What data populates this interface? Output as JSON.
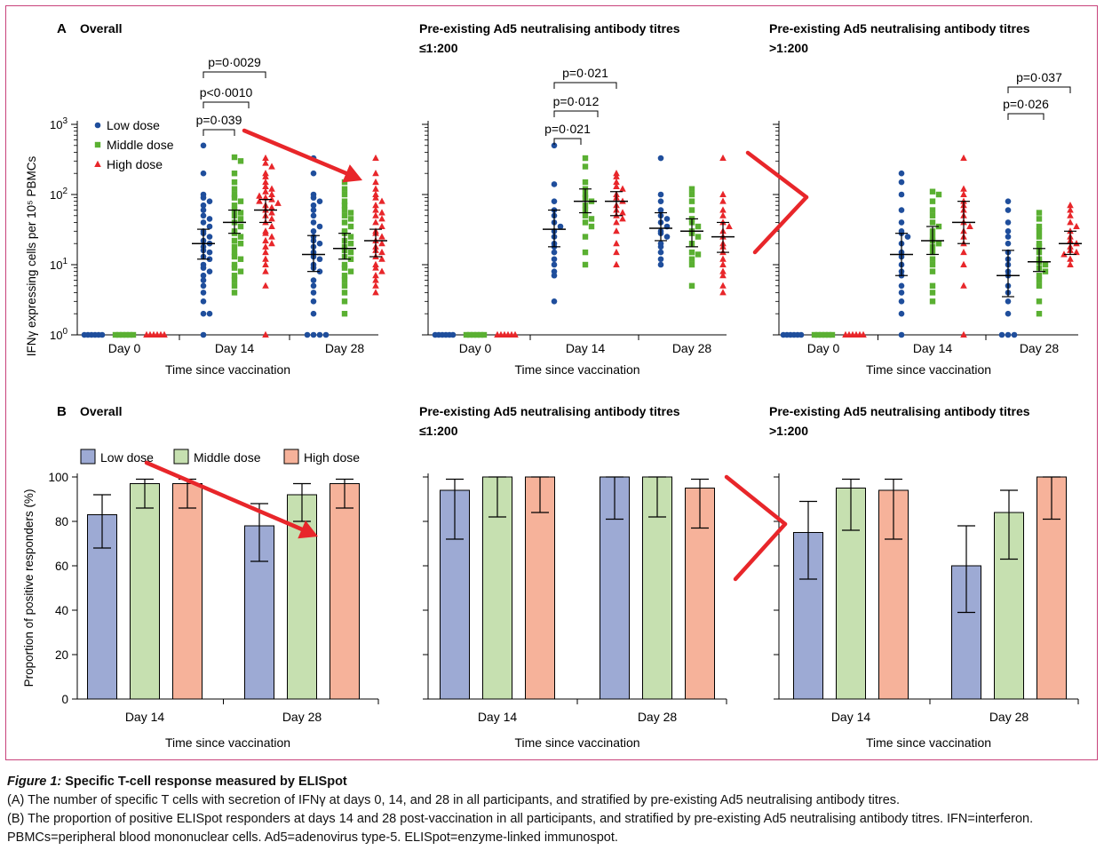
{
  "chart_data": [
    {
      "type": "scatter",
      "panel_letter": "A",
      "title": "Overall",
      "ylabel": "IFNγ expressing cells per 10⁵ PBMCs",
      "xlabel": "Time since vaccination",
      "categories": [
        "Day 0",
        "Day 14",
        "Day 28"
      ],
      "yscale": "log",
      "ylim": [
        1,
        1000
      ],
      "legend": {
        "placement": "top-left",
        "entries": [
          "Low dose",
          "Middle dose",
          "High dose"
        ]
      },
      "series": [
        {
          "name": "Low dose",
          "color": "#1f4e9c",
          "marker": "circle",
          "values": {
            "Day 0": [
              1,
              1,
              1,
              1,
              1,
              1
            ],
            "Day 14": [
              500,
              200,
              100,
              90,
              80,
              70,
              60,
              50,
              45,
              40,
              35,
              30,
              28,
              25,
              22,
              20,
              18,
              16,
              15,
              13,
              12,
              10,
              9,
              8,
              7,
              6,
              5,
              4,
              3,
              2,
              2,
              1
            ],
            "Day 28": [
              330,
              200,
              100,
              90,
              80,
              70,
              60,
              50,
              40,
              35,
              30,
              25,
              22,
              20,
              18,
              15,
              13,
              12,
              10,
              9,
              8,
              6,
              5,
              4,
              3,
              2,
              1,
              1,
              1,
              1
            ]
          },
          "median": {
            "Day 14": 20,
            "Day 28": 14
          },
          "iqr": {
            "Day 14": [
              12,
              32
            ],
            "Day 28": [
              8,
              26
            ]
          }
        },
        {
          "name": "Middle dose",
          "color": "#5ab032",
          "marker": "square",
          "values": {
            "Day 0": [
              1,
              1,
              1,
              1,
              1,
              1
            ],
            "Day 14": [
              340,
              300,
              200,
              150,
              120,
              100,
              90,
              80,
              70,
              60,
              55,
              50,
              45,
              40,
              35,
              30,
              28,
              25,
              22,
              20,
              18,
              15,
              13,
              12,
              10,
              9,
              8,
              7,
              6,
              5,
              4
            ],
            "Day 28": [
              150,
              120,
              100,
              80,
              70,
              60,
              55,
              50,
              45,
              40,
              35,
              30,
              28,
              25,
              22,
              20,
              18,
              16,
              15,
              13,
              12,
              10,
              9,
              8,
              7,
              6,
              5,
              4,
              3,
              2
            ]
          },
          "median": {
            "Day 14": 40,
            "Day 28": 17
          },
          "iqr": {
            "Day 14": [
              28,
              60
            ],
            "Day 28": [
              12,
              28
            ]
          }
        },
        {
          "name": "High dose",
          "color": "#e8262a",
          "marker": "triangle",
          "values": {
            "Day 0": [
              1,
              1,
              1,
              1,
              1,
              1
            ],
            "Day 14": [
              330,
              280,
              250,
              200,
              180,
              150,
              130,
              120,
              110,
              100,
              95,
              90,
              85,
              80,
              75,
              70,
              65,
              60,
              55,
              50,
              45,
              40,
              35,
              30,
              28,
              25,
              22,
              20,
              18,
              15,
              12,
              10,
              8,
              5,
              1
            ],
            "Day 28": [
              330,
              200,
              150,
              120,
              100,
              90,
              80,
              70,
              60,
              55,
              50,
              45,
              40,
              35,
              30,
              28,
              25,
              22,
              20,
              18,
              16,
              15,
              13,
              12,
              10,
              9,
              8,
              7,
              6,
              5,
              4
            ]
          },
          "median": {
            "Day 14": 60,
            "Day 28": 22
          },
          "iqr": {
            "Day 14": [
              40,
              85
            ],
            "Day 28": [
              13,
              32
            ]
          }
        }
      ],
      "annotations": [
        "p=0·0029",
        "p<0·0010",
        "p=0·039"
      ]
    },
    {
      "type": "scatter",
      "panel_letter": "",
      "title": "Pre-existing Ad5 neutralising antibody titres",
      "title_line2": "≤1:200",
      "xlabel": "Time since vaccination",
      "categories": [
        "Day 0",
        "Day 14",
        "Day 28"
      ],
      "yscale": "log",
      "ylim": [
        1,
        1000
      ],
      "series": [
        {
          "name": "Low dose",
          "color": "#1f4e9c",
          "marker": "circle",
          "values": {
            "Day 0": [
              1,
              1,
              1,
              1,
              1,
              1
            ],
            "Day 14": [
              500,
              140,
              80,
              60,
              50,
              40,
              35,
              30,
              25,
              20,
              18,
              15,
              12,
              10,
              8,
              7,
              3
            ],
            "Day 28": [
              330,
              100,
              80,
              60,
              50,
              45,
              40,
              35,
              30,
              28,
              25,
              20,
              18,
              15,
              12,
              10
            ]
          },
          "median": {
            "Day 14": 32,
            "Day 28": 33
          },
          "iqr": {
            "Day 14": [
              18,
              60
            ],
            "Day 28": [
              22,
              55
            ]
          }
        },
        {
          "name": "Middle dose",
          "color": "#5ab032",
          "marker": "square",
          "values": {
            "Day 0": [
              1,
              1,
              1,
              1,
              1,
              1
            ],
            "Day 14": [
              330,
              250,
              150,
              120,
              100,
              90,
              80,
              70,
              60,
              50,
              45,
              40,
              35,
              25,
              15,
              10
            ],
            "Day 28": [
              120,
              100,
              80,
              60,
              45,
              40,
              35,
              30,
              28,
              25,
              20,
              15,
              14,
              12,
              10,
              5
            ]
          },
          "median": {
            "Day 14": 80,
            "Day 28": 30
          },
          "iqr": {
            "Day 14": [
              55,
              120
            ],
            "Day 28": [
              18,
              45
            ]
          }
        },
        {
          "name": "High dose",
          "color": "#e8262a",
          "marker": "triangle",
          "values": {
            "Day 0": [
              1,
              1,
              1,
              1,
              1,
              1
            ],
            "Day 14": [
              200,
              180,
              150,
              130,
              120,
              100,
              90,
              80,
              70,
              60,
              55,
              50,
              45,
              40,
              30,
              20,
              15,
              10
            ],
            "Day 28": [
              330,
              100,
              80,
              60,
              50,
              40,
              35,
              30,
              25,
              20,
              18,
              15,
              12,
              10,
              8,
              7,
              5,
              4
            ]
          },
          "median": {
            "Day 14": 80,
            "Day 28": 25
          },
          "iqr": {
            "Day 14": [
              50,
              110
            ],
            "Day 28": [
              15,
              40
            ]
          }
        }
      ],
      "annotations": [
        "p=0·021",
        "p=0·012",
        "p=0·021"
      ]
    },
    {
      "type": "scatter",
      "panel_letter": "",
      "title": "Pre-existing Ad5 neutralising antibody titres",
      "title_line2": ">1:200",
      "xlabel": "Time since vaccination",
      "categories": [
        "Day 0",
        "Day 14",
        "Day 28"
      ],
      "yscale": "log",
      "ylim": [
        1,
        1000
      ],
      "series": [
        {
          "name": "Low dose",
          "color": "#1f4e9c",
          "marker": "circle",
          "values": {
            "Day 0": [
              1,
              1,
              1,
              1,
              1,
              1
            ],
            "Day 14": [
              200,
              150,
              100,
              60,
              40,
              30,
              28,
              25,
              20,
              15,
              13,
              10,
              8,
              7,
              5,
              4,
              3,
              2,
              1
            ],
            "Day 28": [
              80,
              60,
              40,
              30,
              25,
              20,
              15,
              12,
              10,
              8,
              7,
              5,
              4,
              3,
              2,
              1,
              1,
              1
            ]
          },
          "median": {
            "Day 14": 14,
            "Day 28": 7
          },
          "iqr": {
            "Day 14": [
              7,
              28
            ],
            "Day 28": [
              3.5,
              16
            ]
          }
        },
        {
          "name": "Middle dose",
          "color": "#5ab032",
          "marker": "square",
          "values": {
            "Day 0": [
              1,
              1,
              1,
              1,
              1,
              1
            ],
            "Day 14": [
              110,
              100,
              80,
              60,
              50,
              40,
              35,
              30,
              25,
              22,
              20,
              18,
              15,
              12,
              10,
              8,
              5,
              4,
              3
            ],
            "Day 28": [
              55,
              45,
              35,
              30,
              25,
              20,
              18,
              15,
              12,
              11,
              10,
              9,
              8,
              7,
              6,
              5,
              3,
              2
            ]
          },
          "median": {
            "Day 14": 22,
            "Day 28": 11
          },
          "iqr": {
            "Day 14": [
              14,
              35
            ],
            "Day 28": [
              8,
              17
            ]
          }
        },
        {
          "name": "High dose",
          "color": "#e8262a",
          "marker": "triangle",
          "values": {
            "Day 0": [
              1,
              1,
              1,
              1,
              1,
              1
            ],
            "Day 14": [
              330,
              120,
              100,
              80,
              70,
              60,
              50,
              40,
              35,
              30,
              25,
              20,
              15,
              10,
              5,
              1
            ],
            "Day 28": [
              70,
              60,
              50,
              40,
              35,
              30,
              25,
              22,
              20,
              18,
              16,
              15,
              14,
              12,
              10
            ]
          },
          "median": {
            "Day 14": 40,
            "Day 28": 20
          },
          "iqr": {
            "Day 14": [
              20,
              80
            ],
            "Day 28": [
              14,
              30
            ]
          }
        }
      ],
      "annotations": [
        "p=0·037",
        "p=0·026"
      ]
    },
    {
      "type": "bar",
      "panel_letter": "B",
      "title": "Overall",
      "ylabel": "Proportion of positive responders (%)",
      "xlabel": "Time since vaccination",
      "categories": [
        "Day 14",
        "Day 28"
      ],
      "ylim": [
        0,
        100
      ],
      "yticks": [
        0,
        20,
        40,
        60,
        80,
        100
      ],
      "legend": {
        "placement": "top",
        "entries": [
          "Low dose",
          "Middle dose",
          "High dose"
        ]
      },
      "series": [
        {
          "name": "Low dose",
          "color": "#9daad4",
          "values": [
            83,
            78
          ],
          "error": [
            [
              68,
              92
            ],
            [
              62,
              88
            ]
          ]
        },
        {
          "name": "Middle dose",
          "color": "#c6e0b0",
          "values": [
            97,
            92
          ],
          "error": [
            [
              86,
              99
            ],
            [
              80,
              97
            ]
          ]
        },
        {
          "name": "High dose",
          "color": "#f6b29a",
          "values": [
            97,
            97
          ],
          "error": [
            [
              86,
              99
            ],
            [
              86,
              99
            ]
          ]
        }
      ]
    },
    {
      "type": "bar",
      "panel_letter": "",
      "title": "Pre-existing Ad5 neutralising antibody titres",
      "title_line2": "≤1:200",
      "xlabel": "Time since vaccination",
      "categories": [
        "Day 14",
        "Day 28"
      ],
      "ylim": [
        0,
        100
      ],
      "series": [
        {
          "name": "Low dose",
          "color": "#9daad4",
          "values": [
            94,
            100
          ],
          "error": [
            [
              72,
              99
            ],
            [
              81,
              100
            ]
          ]
        },
        {
          "name": "Middle dose",
          "color": "#c6e0b0",
          "values": [
            100,
            100
          ],
          "error": [
            [
              82,
              100
            ],
            [
              82,
              100
            ]
          ]
        },
        {
          "name": "High dose",
          "color": "#f6b29a",
          "values": [
            100,
            95
          ],
          "error": [
            [
              84,
              100
            ],
            [
              77,
              99
            ]
          ]
        }
      ]
    },
    {
      "type": "bar",
      "panel_letter": "",
      "title": "Pre-existing Ad5 neutralising antibody titres",
      "title_line2": ">1:200",
      "xlabel": "Time since vaccination",
      "categories": [
        "Day 14",
        "Day 28"
      ],
      "ylim": [
        0,
        100
      ],
      "series": [
        {
          "name": "Low dose",
          "color": "#9daad4",
          "values": [
            75,
            60
          ],
          "error": [
            [
              54,
              89
            ],
            [
              39,
              78
            ]
          ]
        },
        {
          "name": "Middle dose",
          "color": "#c6e0b0",
          "values": [
            95,
            84
          ],
          "error": [
            [
              76,
              99
            ],
            [
              63,
              94
            ]
          ]
        },
        {
          "name": "High dose",
          "color": "#f6b29a",
          "values": [
            94,
            100
          ],
          "error": [
            [
              72,
              99
            ],
            [
              81,
              100
            ]
          ]
        }
      ]
    }
  ],
  "caption": {
    "figure_label": "Figure 1:",
    "title": "Specific T-cell response measured by ELISpot",
    "line_a": "(A) The number of specific T cells with secretion of IFNγ at days 0, 14, and 28 in all participants, and stratified by pre-existing Ad5 neutralising antibody titres.",
    "line_b": "(B) The proportion of positive ELISpot responders at days 14 and 28 post-vaccination in all participants, and stratified by pre-existing Ad5 neutralising antibody titres. IFN=interferon. PBMCs=peripheral blood mononuclear cells. Ad5=adenovirus type-5. ELISpot=enzyme-linked immunospot."
  }
}
